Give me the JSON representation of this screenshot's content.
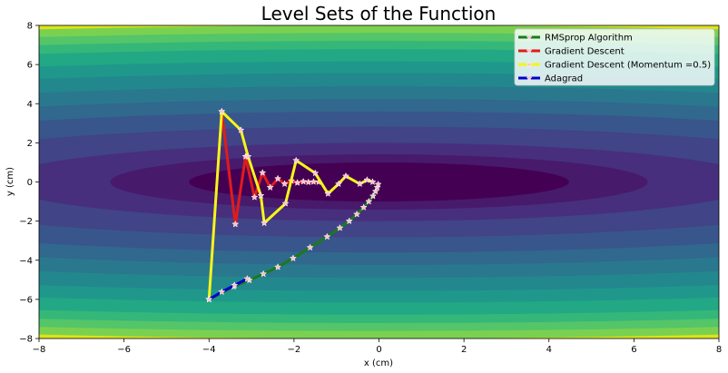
{
  "chart_data": {
    "type": "contour",
    "title": "Level Sets of the Function",
    "xlabel": "x (cm)",
    "ylabel": "y (cm)",
    "xlim": [
      -8,
      8
    ],
    "ylim": [
      -8,
      8
    ],
    "xticks": [
      -8,
      -6,
      -4,
      -2,
      0,
      2,
      4,
      6,
      8
    ],
    "yticks": [
      -8,
      -6,
      -4,
      -2,
      0,
      2,
      4,
      6,
      8
    ],
    "xtick_labels": [
      "−8",
      "−6",
      "−4",
      "−2",
      "0",
      "2",
      "4",
      "6",
      "8"
    ],
    "ytick_labels": [
      "−8",
      "−6",
      "−4",
      "−2",
      "0",
      "2",
      "4",
      "6",
      "8"
    ],
    "function": {
      "a": 0.05,
      "b": 1.0
    },
    "contour_levels": [
      0,
      1,
      2,
      4,
      8,
      13,
      18,
      24,
      31,
      38,
      46,
      52,
      58,
      64
    ],
    "contour_colors": [
      "#440154",
      "#481a6c",
      "#472f7d",
      "#414487",
      "#39568c",
      "#31688e",
      "#2a788e",
      "#23888e",
      "#1f988b",
      "#22a884",
      "#35b779",
      "#54c568",
      "#7ad151",
      "#a5db36",
      "#d2e21b",
      "#dde318"
    ],
    "legend_position": "upper right",
    "series": [
      {
        "name": "RMSprop Algorithm",
        "color": "#1a7a1a",
        "x": [
          -4.0,
          -3.42,
          -3.05,
          -2.72,
          -2.38,
          -2.02,
          -1.62,
          -1.22,
          -0.92,
          -0.7,
          -0.52,
          -0.36,
          -0.24,
          -0.14,
          -0.08,
          -0.04,
          -0.02
        ],
        "y": [
          -6.0,
          -5.35,
          -5.02,
          -4.7,
          -4.35,
          -3.9,
          -3.35,
          -2.8,
          -2.35,
          -2.0,
          -1.65,
          -1.3,
          -1.0,
          -0.72,
          -0.48,
          -0.28,
          -0.12
        ]
      },
      {
        "name": "Gradient Descent",
        "color": "#e31a1c",
        "x": [
          -3.7,
          -3.38,
          -3.14,
          -2.93,
          -2.74,
          -2.56,
          -2.38,
          -2.22,
          -2.06,
          -1.92,
          -1.78,
          -1.66,
          -1.54,
          -1.42
        ],
        "y": [
          3.6,
          -2.16,
          1.3,
          -0.78,
          0.47,
          -0.28,
          0.17,
          -0.1,
          0.06,
          -0.04,
          0.02,
          -0.01,
          0.01,
          0.0
        ]
      },
      {
        "name": "Gradient Descent (Momentum =0.5)",
        "color": "#f5f51a",
        "x": [
          -4.0,
          -3.7,
          -3.25,
          -3.08,
          -2.78,
          -2.7,
          -2.2,
          -1.95,
          -1.5,
          -1.2,
          -0.95,
          -0.78,
          -0.45,
          -0.28,
          -0.15
        ],
        "y": [
          -6.0,
          3.6,
          2.65,
          1.3,
          -0.7,
          -2.1,
          -1.1,
          1.1,
          0.45,
          -0.6,
          -0.1,
          0.3,
          -0.1,
          0.1,
          0.0
        ]
      },
      {
        "name": "Adagrad",
        "color": "#0000cd",
        "x": [
          -4.0,
          -3.7,
          -3.4,
          -3.1
        ],
        "y": [
          -6.0,
          -5.62,
          -5.28,
          -4.95
        ]
      }
    ]
  }
}
